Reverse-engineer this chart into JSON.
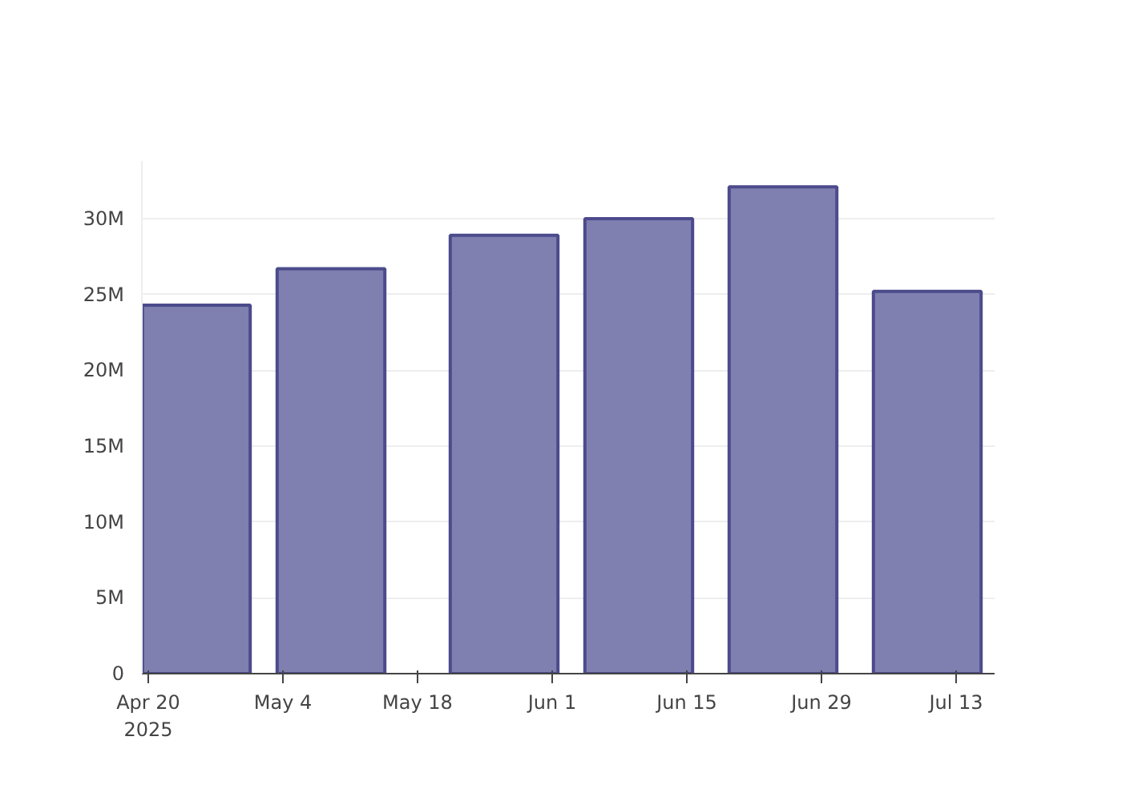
{
  "chart_data": {
    "type": "bar",
    "x": [
      "2025-04-25",
      "2025-05-09",
      "2025-05-27",
      "2025-06-10",
      "2025-06-25",
      "2025-07-10"
    ],
    "values": [
      24.3,
      26.7,
      28.9,
      30.0,
      32.1,
      25.2
    ],
    "color": "#7f7fb0",
    "xlim": [
      "2025-04-19T08:00",
      "2025-07-17"
    ],
    "xticks": [
      {
        "value": "2025-04-20",
        "label": "Apr 20\n2025"
      },
      {
        "value": "2025-05-04",
        "label": "May 4"
      },
      {
        "value": "2025-05-18",
        "label": "May 18"
      },
      {
        "value": "2025-06-01",
        "label": "Jun 1"
      },
      {
        "value": "2025-06-15",
        "label": "Jun 15"
      },
      {
        "value": "2025-06-29",
        "label": "Jun 29"
      },
      {
        "value": "2025-07-13",
        "label": "Jul 13"
      }
    ],
    "ylim": [
      0,
      33.8
    ],
    "yticks": [
      {
        "value": 0,
        "label": "0"
      },
      {
        "value": 5,
        "label": "5M"
      },
      {
        "value": 10,
        "label": "10M"
      },
      {
        "value": 15,
        "label": "15M"
      },
      {
        "value": 20,
        "label": "20M"
      },
      {
        "value": 25,
        "label": "25M"
      },
      {
        "value": 30,
        "label": "30M"
      }
    ],
    "grid": "y"
  }
}
